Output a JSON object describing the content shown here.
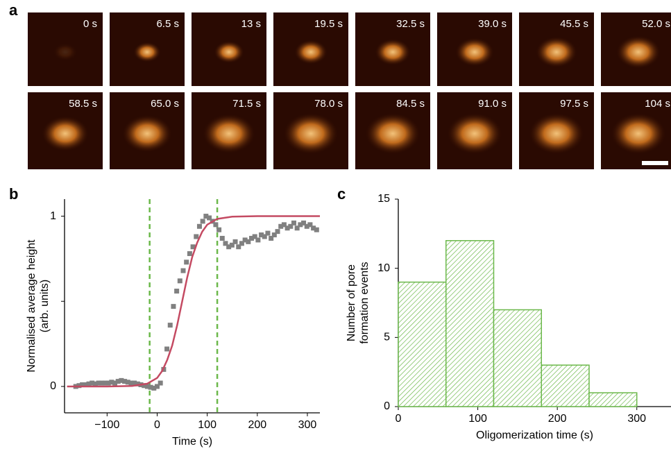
{
  "panel_a": {
    "panel_label": "a",
    "frames": [
      "0 s",
      "6.5 s",
      "13 s",
      "19.5 s",
      "32.5 s",
      "39.0 s",
      "45.5 s",
      "52.0 s",
      "58.5 s",
      "65.0 s",
      "71.5 s",
      "78.0 s",
      "84.5 s",
      "91.0 s",
      "97.5 s",
      "104 s"
    ]
  },
  "chart_data": [
    {
      "type": "scatter",
      "panel_label": "b",
      "xlabel": "Time (s)",
      "ylabel": [
        "Normalised average height",
        "(arb. units)"
      ],
      "xlim": [
        -185,
        325
      ],
      "ylim": [
        -0.155,
        1.1
      ],
      "xticks": [
        {
          "value": -100,
          "label": "−100"
        },
        0,
        100,
        200,
        300
      ],
      "yticks": [
        0,
        1
      ],
      "y_minor_ticks": [
        0.5
      ],
      "vlines": [
        -15,
        120
      ],
      "vline_color": "#6bb84a",
      "series": [
        {
          "type": "scatter",
          "color": "#808080",
          "x": [
            -162.5,
            -156,
            -149.5,
            -143,
            -136.5,
            -130,
            -123.5,
            -117,
            -110.5,
            -104,
            -97.5,
            -91,
            -84.5,
            -78,
            -71.5,
            -65,
            -58.5,
            -52,
            -45.5,
            -39,
            -32.5,
            -26,
            -19.5,
            -13,
            -6.5,
            0,
            6.5,
            13,
            19.5,
            26,
            32.5,
            39,
            45.5,
            52,
            58.5,
            65,
            71.5,
            78,
            84.5,
            91,
            97.5,
            104,
            110.5,
            117,
            123.5,
            130,
            136.5,
            143,
            149.5,
            156,
            162.5,
            169,
            175.5,
            182,
            188.5,
            195,
            201.5,
            208,
            214.5,
            221,
            227.5,
            234,
            240.5,
            247,
            253.5,
            260,
            266.5,
            273,
            279.5,
            286,
            292.5,
            299,
            305.5,
            312,
            318.5
          ],
          "values": [
            0,
            0.005,
            0.01,
            0.01,
            0.015,
            0.02,
            0.015,
            0.02,
            0.02,
            0.02,
            0.02,
            0.025,
            0.02,
            0.03,
            0.035,
            0.03,
            0.025,
            0.02,
            0.02,
            0.015,
            0.01,
            0.005,
            0,
            -0.005,
            -0.01,
            0,
            0.02,
            0.1,
            0.22,
            0.36,
            0.47,
            0.56,
            0.62,
            0.68,
            0.73,
            0.78,
            0.82,
            0.88,
            0.94,
            0.97,
            1,
            0.99,
            0.97,
            0.95,
            0.92,
            0.87,
            0.84,
            0.82,
            0.83,
            0.85,
            0.82,
            0.84,
            0.86,
            0.85,
            0.87,
            0.88,
            0.86,
            0.89,
            0.88,
            0.9,
            0.87,
            0.89,
            0.91,
            0.94,
            0.95,
            0.93,
            0.94,
            0.96,
            0.93,
            0.95,
            0.96,
            0.94,
            0.95,
            0.93,
            0.92
          ]
        },
        {
          "type": "line",
          "color": "#c44a62",
          "x": [
            -180,
            -100,
            -50,
            -20,
            0,
            10,
            20,
            30,
            40,
            50,
            60,
            70,
            80,
            90,
            100,
            120,
            150,
            200,
            325
          ],
          "values": [
            0,
            0,
            0.003,
            0.016,
            0.05,
            0.091,
            0.155,
            0.24,
            0.36,
            0.5,
            0.64,
            0.76,
            0.845,
            0.909,
            0.95,
            0.984,
            0.997,
            1,
            1
          ]
        }
      ]
    },
    {
      "type": "histogram",
      "panel_label": "c",
      "xlabel": "Oligomerization time (s)",
      "ylabel": [
        "Number of pore",
        "formation events"
      ],
      "bins": [
        0,
        60,
        120,
        180,
        240,
        300
      ],
      "values": [
        9,
        12,
        7,
        3,
        1
      ],
      "color": "#6bb84a",
      "xlim": [
        0,
        343
      ],
      "ylim": [
        0,
        15
      ],
      "xticks": [
        0,
        100,
        200,
        300
      ],
      "yticks": [
        0,
        5,
        10,
        15
      ]
    }
  ]
}
